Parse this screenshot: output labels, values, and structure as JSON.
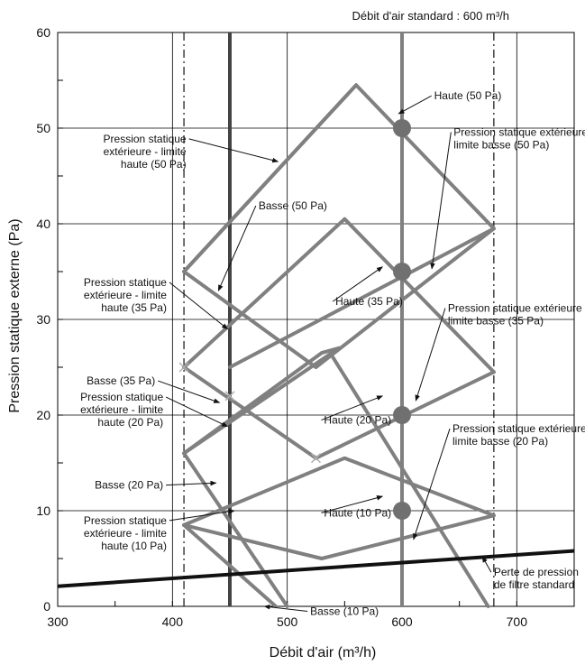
{
  "chart_data": {
    "type": "line",
    "header_label": "Débit d'air standard : 600 m³/h",
    "xlabel": "Débit d'air (m³/h)",
    "ylabel": "Pression statique externe (Pa)",
    "xlim": [
      300,
      750
    ],
    "ylim": [
      0,
      60
    ],
    "x_ticks": [
      "300",
      "400",
      "500",
      "600",
      "700"
    ],
    "y_ticks": [
      "0",
      "10",
      "20",
      "30",
      "40",
      "50",
      "60"
    ],
    "grid": true,
    "colors": {
      "curve": "#808080",
      "filter": "#111111",
      "standard_line": "#808080",
      "grid": "#000000",
      "dot": "#707070"
    },
    "reference_lines": [
      {
        "kind": "dash-dot",
        "x": 410
      },
      {
        "kind": "solid-dark",
        "x": 450
      },
      {
        "kind": "solid-gray",
        "x": 600
      },
      {
        "kind": "dash-dot",
        "x": 680
      }
    ],
    "curves": [
      {
        "points": [
          [
            410,
            35
          ],
          [
            560,
            54.5
          ],
          [
            680,
            39.5
          ],
          [
            410,
            8.5
          ]
        ]
      },
      {
        "points": [
          [
            410,
            25
          ],
          [
            550,
            40.5
          ],
          [
            680,
            24.5
          ],
          [
            410,
            35
          ]
        ]
      },
      {
        "points": [
          [
            410,
            16
          ],
          [
            545,
            27
          ],
          [
            530,
            25
          ],
          [
            410,
            16
          ]
        ]
      },
      {
        "points": [
          [
            410,
            16
          ],
          [
            545,
            27
          ]
        ]
      },
      {
        "points": [
          [
            530,
            25
          ],
          [
            680,
            39.5
          ]
        ]
      },
      {
        "points": [
          [
            410,
            8.5
          ],
          [
            550,
            15.5
          ],
          [
            680,
            9.5
          ],
          [
            410,
            25
          ]
        ]
      },
      {
        "points": [
          [
            530,
            5
          ],
          [
            680,
            24.5
          ]
        ]
      },
      {
        "points": [
          [
            410,
            16
          ],
          [
            500,
            0
          ]
        ]
      },
      {
        "points": [
          [
            450,
            8
          ],
          [
            480,
            0
          ]
        ]
      },
      {
        "points": [
          [
            525,
            15.5
          ],
          [
            680,
            9.5
          ]
        ]
      }
    ],
    "main_curves": [
      {
        "points": [
          [
            410,
            35
          ],
          [
            560,
            54.5
          ],
          [
            680,
            39.5
          ]
        ]
      },
      {
        "points": [
          [
            560,
            54.5
          ],
          [
            410,
            35
          ]
        ]
      },
      {
        "points": [
          [
            410,
            25
          ],
          [
            550,
            40.5
          ],
          [
            680,
            24.5
          ]
        ]
      },
      {
        "points": [
          [
            410,
            16
          ],
          [
            530,
            26.5
          ],
          [
            545,
            27
          ]
        ]
      },
      {
        "points": [
          [
            410,
            8.5
          ],
          [
            550,
            15.5
          ],
          [
            680,
            9.5
          ]
        ]
      }
    ],
    "straight_lines": [
      {
        "from": [
          410,
          35
        ],
        "to": [
          525,
          25
        ]
      },
      {
        "from": [
          525,
          25
        ],
        "to": [
          680,
          39.5
        ]
      },
      {
        "from": [
          410,
          25
        ],
        "to": [
          525,
          15.5
        ]
      },
      {
        "from": [
          525,
          15.5
        ],
        "to": [
          680,
          24.5
        ]
      },
      {
        "from": [
          410,
          8.5
        ],
        "to": [
          530,
          5
        ]
      },
      {
        "from": [
          530,
          5
        ],
        "to": [
          680,
          9.5
        ]
      },
      {
        "from": [
          410,
          16
        ],
        "to": [
          545,
          27
        ]
      },
      {
        "from": [
          410,
          8.5
        ],
        "to": [
          490,
          0
        ]
      },
      {
        "from": [
          410,
          16
        ],
        "to": [
          500,
          0
        ]
      },
      {
        "from": [
          540,
          26
        ],
        "to": [
          675,
          0
        ]
      },
      {
        "from": [
          450,
          25
        ],
        "to": [
          680,
          39.5
        ]
      }
    ],
    "filter_loss": {
      "name": "Perte de pression de filtre standard",
      "points": [
        [
          300,
          2.1
        ],
        [
          750,
          5.8
        ]
      ]
    },
    "operating_points": [
      {
        "x": 600,
        "y": 50
      },
      {
        "x": 600,
        "y": 35
      },
      {
        "x": 600,
        "y": 20
      },
      {
        "x": 600,
        "y": 10
      }
    ],
    "cross_markers": [
      {
        "x": 410,
        "y": 25
      },
      {
        "x": 450,
        "y": 22
      },
      {
        "x": 525,
        "y": 15.5
      }
    ],
    "annotations": [
      {
        "lines": [
          "Haute (50 Pa)"
        ],
        "anchor": "start",
        "at": [
          628,
          53
        ],
        "target": [
          597,
          51.5
        ]
      },
      {
        "lines": [
          "Pression statique",
          "extérieure - limite",
          "haute (50 Pa)"
        ],
        "anchor": "end",
        "at": [
          412,
          48.5
        ],
        "target": [
          492,
          46.5
        ]
      },
      {
        "lines": [
          "Pression statique extérieure -",
          "limite basse (50 Pa)"
        ],
        "anchor": "start",
        "at": [
          645,
          49.2
        ],
        "target": [
          626,
          35.3
        ]
      },
      {
        "lines": [
          "Basse (50 Pa)"
        ],
        "anchor": "start",
        "at": [
          475,
          41.5
        ],
        "target": [
          440,
          33
        ]
      },
      {
        "lines": [
          "Pression statique",
          "extérieure - limite",
          "haute (35 Pa)"
        ],
        "anchor": "end",
        "at": [
          395,
          33.5
        ],
        "target": [
          448,
          29
        ]
      },
      {
        "lines": [
          "Haute (35 Pa)"
        ],
        "anchor": "start",
        "at": [
          542,
          31.5
        ],
        "target": [
          583,
          35.5
        ]
      },
      {
        "lines": [
          "Pression statique extérieure -",
          "limite basse (35 Pa)"
        ],
        "anchor": "start",
        "at": [
          640,
          30.8
        ],
        "target": [
          612,
          21.5
        ]
      },
      {
        "lines": [
          "Basse (35 Pa)"
        ],
        "anchor": "end",
        "at": [
          385,
          23.2
        ],
        "target": [
          441,
          21.3
        ]
      },
      {
        "lines": [
          "Pression statique",
          "extérieure - limite",
          "haute (20 Pa)"
        ],
        "anchor": "end",
        "at": [
          392,
          21.5
        ],
        "target": [
          448,
          18.8
        ]
      },
      {
        "lines": [
          "Haute (20 Pa)"
        ],
        "anchor": "start",
        "at": [
          532,
          19.1
        ],
        "target": [
          583,
          22
        ]
      },
      {
        "lines": [
          "Pression statique extérieure -",
          "limite basse (20 Pa)"
        ],
        "anchor": "start",
        "at": [
          644,
          18.2
        ],
        "target": [
          610,
          7
        ]
      },
      {
        "lines": [
          "Basse (20 Pa)"
        ],
        "anchor": "end",
        "at": [
          392,
          12.3
        ],
        "target": [
          438,
          12.9
        ]
      },
      {
        "lines": [
          "Pression statique",
          "extérieure - limite",
          "haute (10 Pa)"
        ],
        "anchor": "end",
        "at": [
          395,
          8.6
        ],
        "target": [
          454,
          10
        ]
      },
      {
        "lines": [
          "Haute (10 Pa)"
        ],
        "anchor": "start",
        "at": [
          532,
          9.4
        ],
        "target": [
          583,
          11.5
        ]
      },
      {
        "lines": [
          "Basse (10 Pa)"
        ],
        "anchor": "start",
        "at": [
          520,
          -0.9
        ],
        "target": [
          480,
          0
        ]
      },
      {
        "lines": [
          "Perte de pression",
          "de filtre standard"
        ],
        "anchor": "start",
        "at": [
          680,
          3.2
        ],
        "target": [
          670,
          5.2
        ]
      }
    ]
  }
}
